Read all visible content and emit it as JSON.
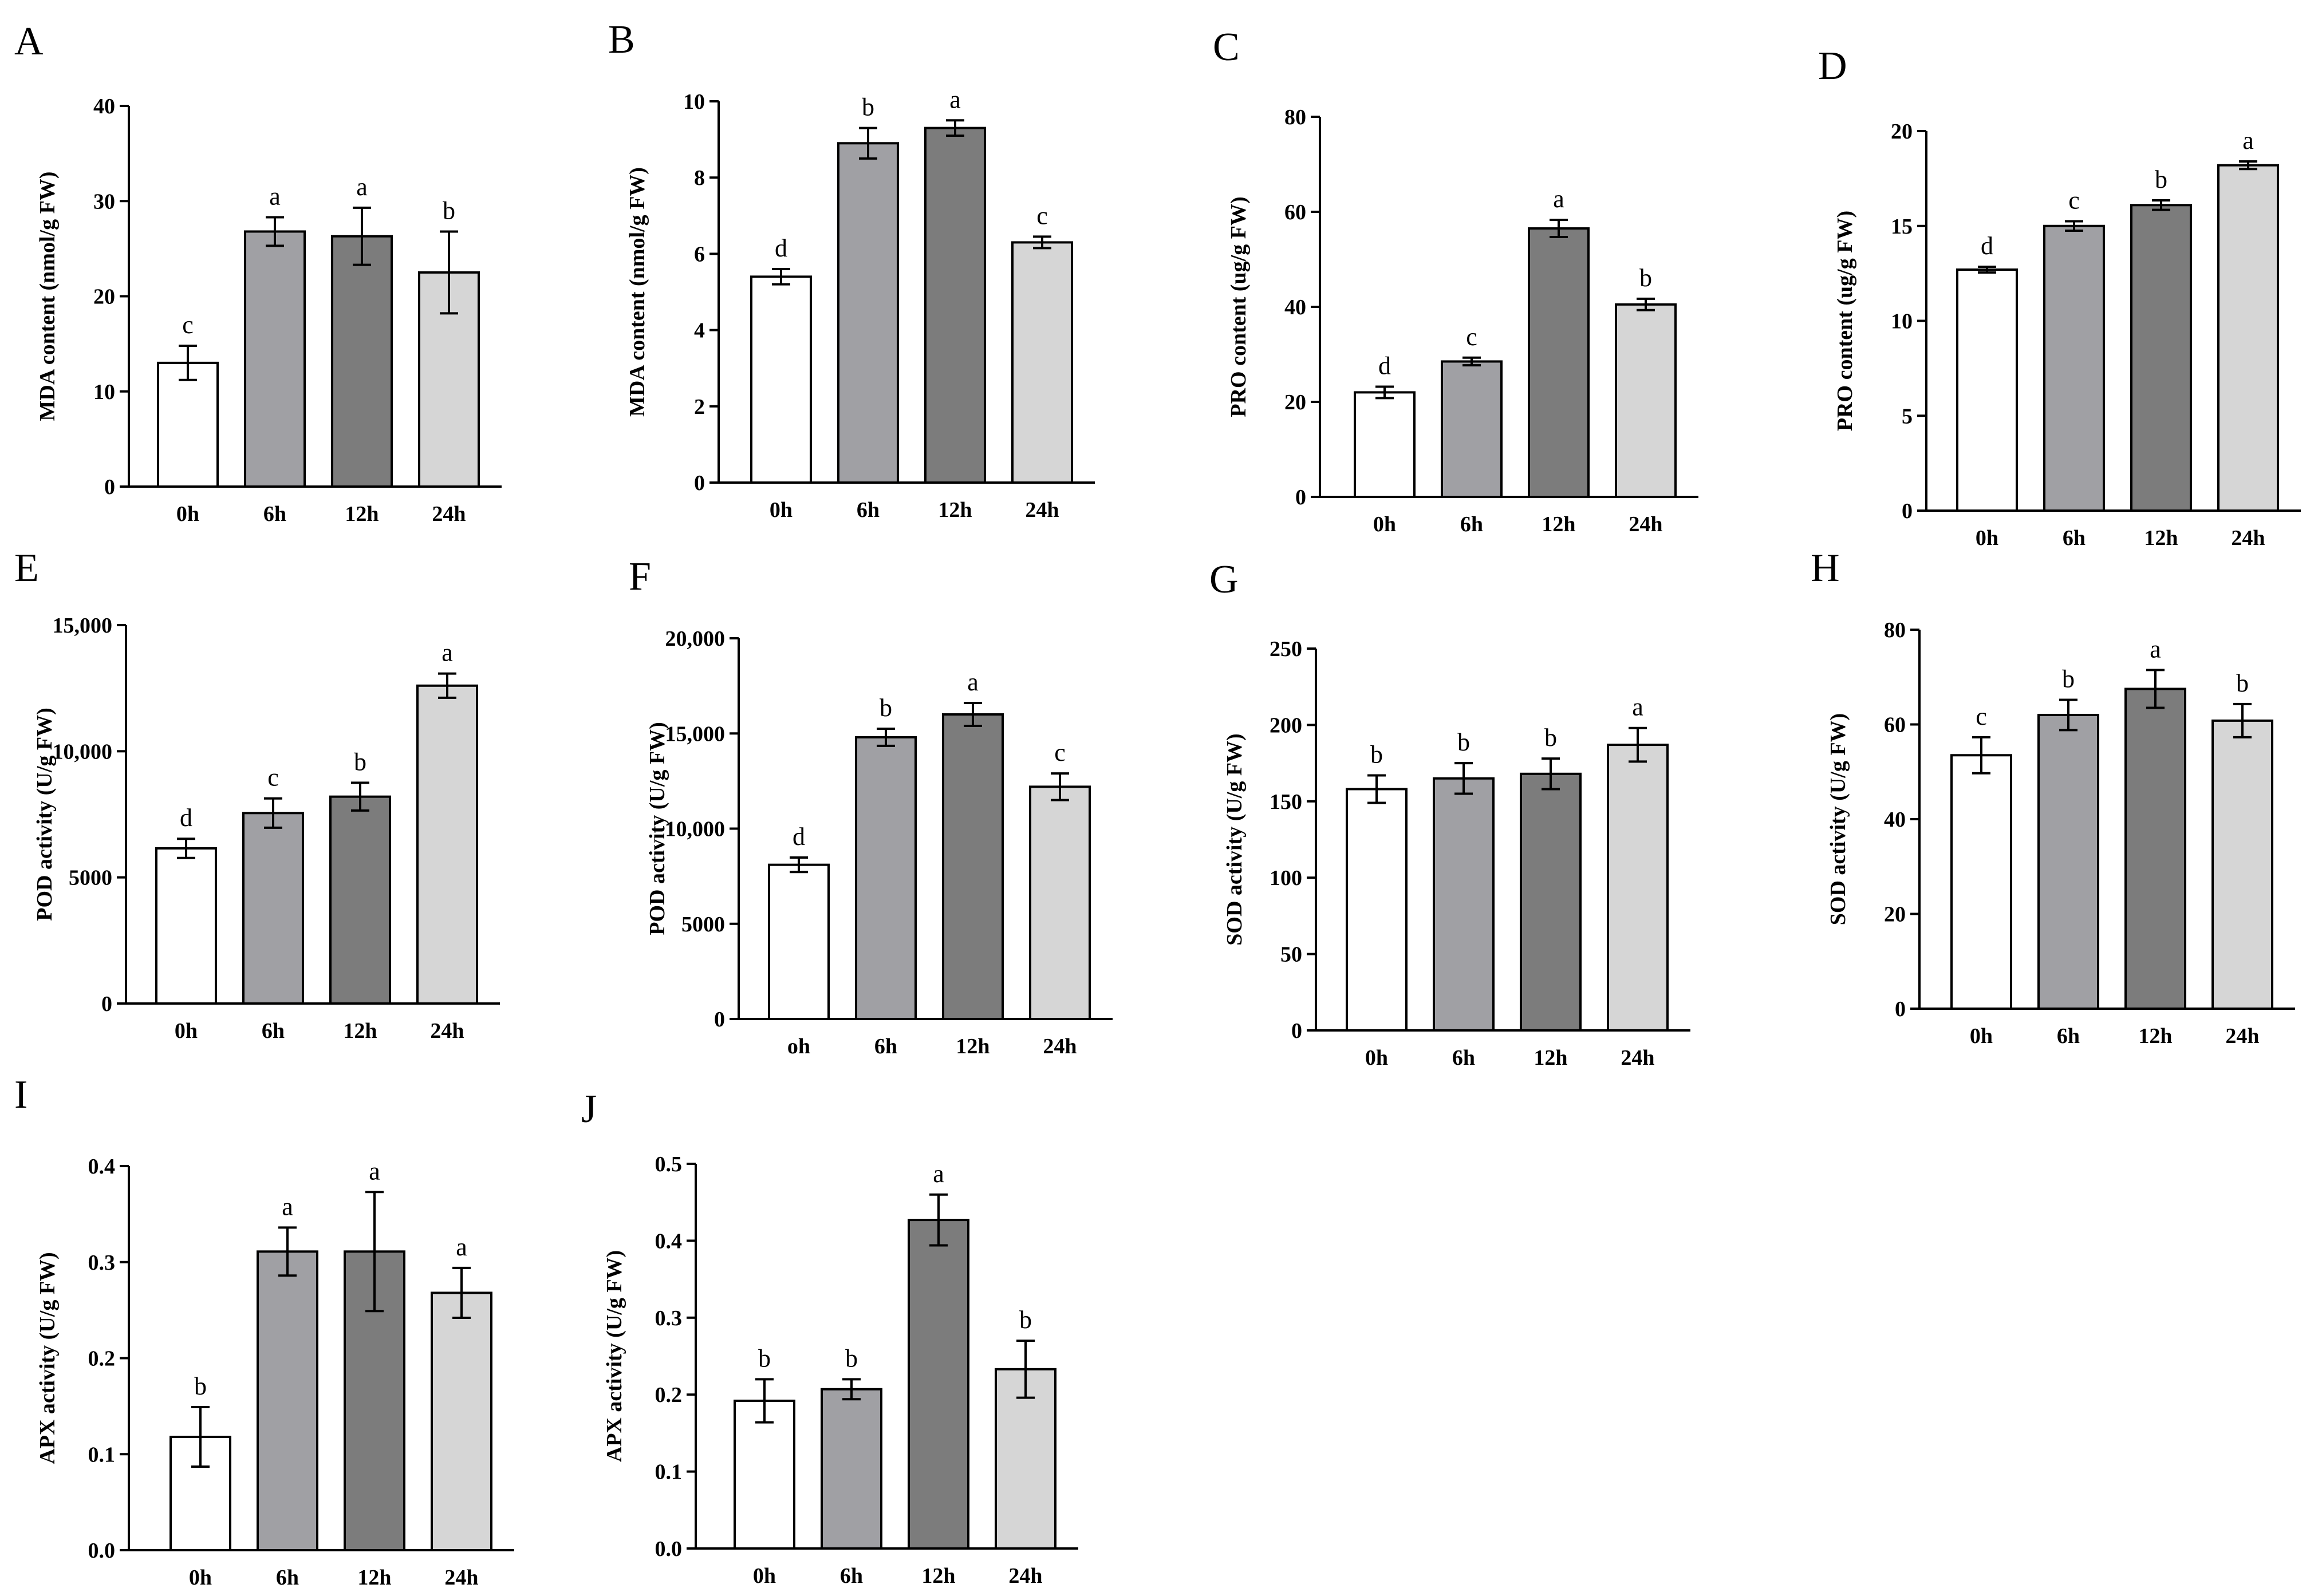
{
  "chart_data": [
    {
      "panel": "A",
      "type": "bar",
      "categories": [
        "0h",
        "6h",
        "12h",
        "24h"
      ],
      "values": [
        13.0,
        26.8,
        26.3,
        22.5
      ],
      "errors": [
        1.8,
        1.5,
        3.0,
        4.3
      ],
      "significance": [
        "c",
        "a",
        "a",
        "b"
      ],
      "ylabel": "MDA content (nmol/g FW)",
      "ylim": [
        0,
        40
      ],
      "yticks": [
        0,
        10,
        20,
        30,
        40
      ],
      "ytick_labels": [
        "0",
        "10",
        "20",
        "30",
        "40"
      ],
      "bar_colors": [
        "#ffffff",
        "#a0a0a4",
        "#7c7c7c",
        "#d6d6d6"
      ]
    },
    {
      "panel": "B",
      "type": "bar",
      "categories": [
        "0h",
        "6h",
        "12h",
        "24h"
      ],
      "values": [
        5.4,
        8.9,
        9.3,
        6.3
      ],
      "errors": [
        0.2,
        0.4,
        0.2,
        0.15
      ],
      "significance": [
        "d",
        "b",
        "a",
        "c"
      ],
      "ylabel": "MDA content (nmol/g FW)",
      "ylim": [
        0,
        10
      ],
      "yticks": [
        0,
        2,
        4,
        6,
        8,
        10
      ],
      "ytick_labels": [
        "0",
        "2",
        "4",
        "6",
        "8",
        "10"
      ],
      "bar_colors": [
        "#ffffff",
        "#a0a0a4",
        "#7c7c7c",
        "#d6d6d6"
      ]
    },
    {
      "panel": "C",
      "type": "bar",
      "categories": [
        "0h",
        "6h",
        "12h",
        "24h"
      ],
      "values": [
        22.0,
        28.5,
        56.5,
        40.5
      ],
      "errors": [
        1.2,
        0.8,
        1.8,
        1.2
      ],
      "significance": [
        "d",
        "c",
        "a",
        "b"
      ],
      "ylabel": "PRO content (ug/g FW)",
      "ylim": [
        0,
        80
      ],
      "yticks": [
        0,
        20,
        40,
        60,
        80
      ],
      "ytick_labels": [
        "0",
        "20",
        "40",
        "60",
        "80"
      ],
      "bar_colors": [
        "#ffffff",
        "#a0a0a4",
        "#7c7c7c",
        "#d6d6d6"
      ]
    },
    {
      "panel": "D",
      "type": "bar",
      "categories": [
        "0h",
        "6h",
        "12h",
        "24h"
      ],
      "values": [
        12.7,
        15.0,
        16.1,
        18.2
      ],
      "errors": [
        0.15,
        0.25,
        0.25,
        0.2
      ],
      "significance": [
        "d",
        "c",
        "b",
        "a"
      ],
      "ylabel": "PRO content (ug/g FW)",
      "ylim": [
        0,
        20
      ],
      "yticks": [
        0,
        5,
        10,
        15,
        20
      ],
      "ytick_labels": [
        "0",
        "5",
        "10",
        "15",
        "20"
      ],
      "bar_colors": [
        "#ffffff",
        "#a0a0a4",
        "#7c7c7c",
        "#d6d6d6"
      ]
    },
    {
      "panel": "E",
      "type": "bar",
      "categories": [
        "0h",
        "6h",
        "12h",
        "24h"
      ],
      "values": [
        6150,
        7550,
        8200,
        12600
      ],
      "errors": [
        380,
        580,
        550,
        480
      ],
      "significance": [
        "d",
        "c",
        "b",
        "a"
      ],
      "ylabel": "POD activity (U/g FW)",
      "ylim": [
        0,
        15000
      ],
      "yticks": [
        0,
        5000,
        10000,
        15000
      ],
      "ytick_labels": [
        "0",
        "5000",
        "10,000",
        "15,000"
      ],
      "bar_colors": [
        "#ffffff",
        "#a0a0a4",
        "#7c7c7c",
        "#d6d6d6"
      ]
    },
    {
      "panel": "F",
      "type": "bar",
      "categories": [
        "oh",
        "6h",
        "12h",
        "24h"
      ],
      "values": [
        8100,
        14800,
        16000,
        12200
      ],
      "errors": [
        380,
        450,
        600,
        700
      ],
      "significance": [
        "d",
        "b",
        "a",
        "c"
      ],
      "ylabel": "POD activity (U/g FW)",
      "ylim": [
        0,
        20000
      ],
      "yticks": [
        0,
        5000,
        10000,
        15000,
        20000
      ],
      "ytick_labels": [
        "0",
        "5000",
        "10,000",
        "15,000",
        "20,000"
      ],
      "bar_colors": [
        "#ffffff",
        "#a0a0a4",
        "#7c7c7c",
        "#d6d6d6"
      ]
    },
    {
      "panel": "G",
      "type": "bar",
      "categories": [
        "0h",
        "6h",
        "12h",
        "24h"
      ],
      "values": [
        158,
        165,
        168,
        187
      ],
      "errors": [
        9,
        10,
        10,
        11
      ],
      "significance": [
        "b",
        "b",
        "b",
        "a"
      ],
      "ylabel": "SOD activity (U/g FW)",
      "ylim": [
        0,
        250
      ],
      "yticks": [
        0,
        50,
        100,
        150,
        200,
        250
      ],
      "ytick_labels": [
        "0",
        "50",
        "100",
        "150",
        "200",
        "250"
      ],
      "bar_colors": [
        "#ffffff",
        "#a0a0a4",
        "#7c7c7c",
        "#d6d6d6"
      ]
    },
    {
      "panel": "H",
      "type": "bar",
      "categories": [
        "0h",
        "6h",
        "12h",
        "24h"
      ],
      "values": [
        53.5,
        62.0,
        67.5,
        60.8
      ],
      "errors": [
        3.8,
        3.2,
        4.0,
        3.5
      ],
      "significance": [
        "c",
        "b",
        "a",
        "b"
      ],
      "ylabel": "SOD activity (U/g FW)",
      "ylim": [
        0,
        80
      ],
      "yticks": [
        0,
        20,
        40,
        60,
        80
      ],
      "ytick_labels": [
        "0",
        "20",
        "40",
        "60",
        "80"
      ],
      "bar_colors": [
        "#ffffff",
        "#a0a0a4",
        "#7c7c7c",
        "#d6d6d6"
      ]
    },
    {
      "panel": "I",
      "type": "bar",
      "categories": [
        "0h",
        "6h",
        "12h",
        "24h"
      ],
      "values": [
        0.118,
        0.311,
        0.311,
        0.268
      ],
      "errors": [
        0.031,
        0.025,
        0.062,
        0.026
      ],
      "significance": [
        "b",
        "a",
        "a",
        "a"
      ],
      "ylabel": "APX activity (U/g FW)",
      "ylim": [
        0,
        0.4
      ],
      "yticks": [
        0,
        0.1,
        0.2,
        0.3,
        0.4
      ],
      "ytick_labels": [
        "0.0",
        "0.1",
        "0.2",
        "0.3",
        "0.4"
      ],
      "bar_colors": [
        "#ffffff",
        "#a0a0a4",
        "#7c7c7c",
        "#d6d6d6"
      ]
    },
    {
      "panel": "J",
      "type": "bar",
      "categories": [
        "0h",
        "6h",
        "12h",
        "24h"
      ],
      "values": [
        0.192,
        0.207,
        0.427,
        0.233
      ],
      "errors": [
        0.028,
        0.013,
        0.033,
        0.037
      ],
      "significance": [
        "b",
        "b",
        "a",
        "b"
      ],
      "ylabel": "APX activity (U/g FW)",
      "ylim": [
        0,
        0.5
      ],
      "yticks": [
        0,
        0.1,
        0.2,
        0.3,
        0.4,
        0.5
      ],
      "ytick_labels": [
        "0.0",
        "0.1",
        "0.2",
        "0.3",
        "0.4",
        "0.5"
      ],
      "bar_colors": [
        "#ffffff",
        "#a0a0a4",
        "#7c7c7c",
        "#d6d6d6"
      ]
    }
  ]
}
